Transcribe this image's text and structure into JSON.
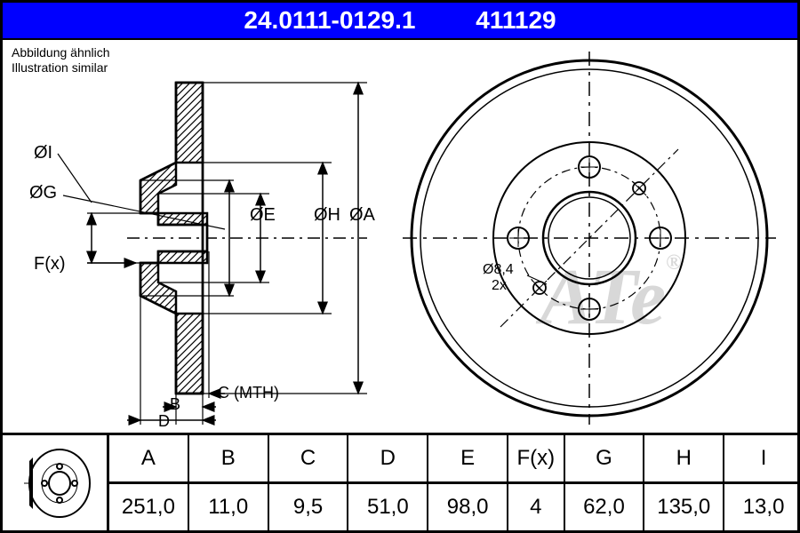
{
  "header": {
    "part_number": "24.0111-0129.1",
    "short_code": "411129",
    "bg_color": "#0000ff",
    "text_color": "#ffffff"
  },
  "subtitle": {
    "line1": "Abbildung ähnlich",
    "line2": "Illustration similar"
  },
  "watermark": {
    "text": "ATe",
    "registered": "®",
    "color": "#d8d8d8"
  },
  "front_view": {
    "bolt_hole_label": "Ø8,4",
    "bolt_count_label": "2x",
    "n_bolt_holes": 4
  },
  "side_view": {
    "dim_labels": [
      "ØI",
      "ØG",
      "ØE",
      "ØH",
      "ØA",
      "F(x)",
      "B",
      "C (MTH)",
      "D"
    ]
  },
  "table": {
    "columns": [
      "A",
      "B",
      "C",
      "D",
      "E",
      "F(x)",
      "G",
      "H",
      "I"
    ],
    "values": [
      "251,0",
      "11,0",
      "9,5",
      "51,0",
      "98,0",
      "4",
      "62,0",
      "135,0",
      "13,0"
    ],
    "narrow_cols": [
      5
    ]
  },
  "colors": {
    "line": "#000000",
    "bg": "#ffffff",
    "hatch": "#000000"
  }
}
